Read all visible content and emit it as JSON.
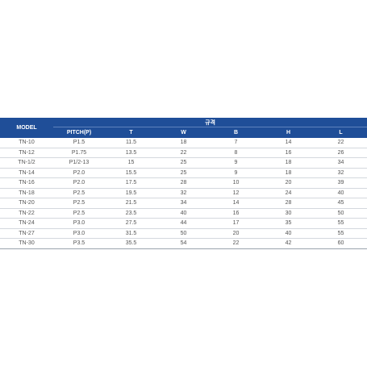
{
  "table": {
    "group_header": "규격",
    "header": [
      "MODEL",
      "PITCH(P)",
      "T",
      "W",
      "B",
      "H",
      "L"
    ],
    "rows": [
      [
        "TN-10",
        "P1.5",
        "11.5",
        "18",
        "7",
        "14",
        "22"
      ],
      [
        "TN-12",
        "P1.75",
        "13.5",
        "22",
        "8",
        "16",
        "26"
      ],
      [
        "TN-1/2",
        "P1/2-13",
        "15",
        "25",
        "9",
        "18",
        "34"
      ],
      [
        "TN-14",
        "P2.0",
        "15.5",
        "25",
        "9",
        "18",
        "32"
      ],
      [
        "TN-16",
        "P2.0",
        "17.5",
        "28",
        "10",
        "20",
        "39"
      ],
      [
        "TN-18",
        "P2.5",
        "19.5",
        "32",
        "12",
        "24",
        "40"
      ],
      [
        "TN-20",
        "P2.5",
        "21.5",
        "34",
        "14",
        "28",
        "45"
      ],
      [
        "TN-22",
        "P2.5",
        "23.5",
        "40",
        "16",
        "30",
        "50"
      ],
      [
        "TN-24",
        "P3.0",
        "27.5",
        "44",
        "17",
        "35",
        "55"
      ],
      [
        "TN-27",
        "P3.0",
        "31.5",
        "50",
        "20",
        "40",
        "55"
      ],
      [
        "TN-30",
        "P3.5",
        "35.5",
        "54",
        "22",
        "42",
        "60"
      ]
    ]
  }
}
